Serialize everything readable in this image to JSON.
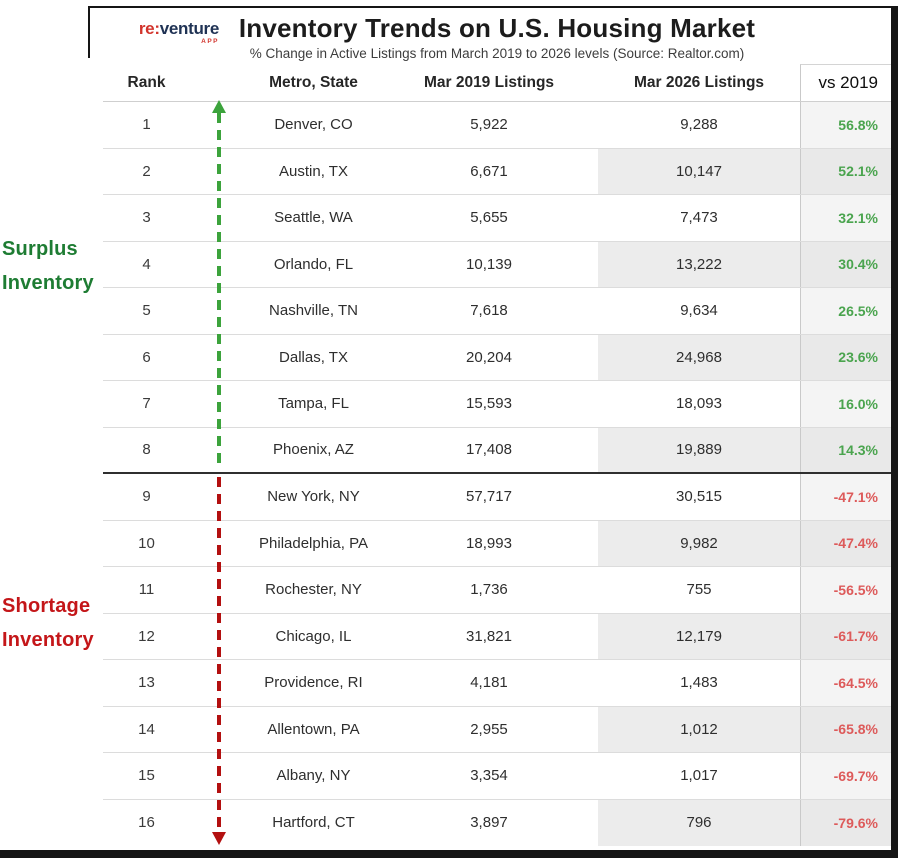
{
  "logo": {
    "prefix": "re:",
    "name": "venture",
    "suffix": "APP"
  },
  "header": {
    "title": "Inventory Trends on U.S. Housing Market",
    "subtitle": "% Change in Active Listings from March 2019 to 2026 levels (Source: Realtor.com)"
  },
  "table": {
    "columns": [
      "Rank",
      "Metro, State",
      "Mar 2019 Listings",
      "Mar 2026 Listings",
      "vs 2019"
    ],
    "rows": [
      {
        "rank": "1",
        "metro": "Denver, CO",
        "mar2019": "5,922",
        "mar2026": "9,288",
        "vs2019": "56.8%"
      },
      {
        "rank": "2",
        "metro": "Austin, TX",
        "mar2019": "6,671",
        "mar2026": "10,147",
        "vs2019": "52.1%"
      },
      {
        "rank": "3",
        "metro": "Seattle, WA",
        "mar2019": "5,655",
        "mar2026": "7,473",
        "vs2019": "32.1%"
      },
      {
        "rank": "4",
        "metro": "Orlando, FL",
        "mar2019": "10,139",
        "mar2026": "13,222",
        "vs2019": "30.4%"
      },
      {
        "rank": "5",
        "metro": "Nashville, TN",
        "mar2019": "7,618",
        "mar2026": "9,634",
        "vs2019": "26.5%"
      },
      {
        "rank": "6",
        "metro": "Dallas, TX",
        "mar2019": "20,204",
        "mar2026": "24,968",
        "vs2019": "23.6%"
      },
      {
        "rank": "7",
        "metro": "Tampa, FL",
        "mar2019": "15,593",
        "mar2026": "18,093",
        "vs2019": "16.0%"
      },
      {
        "rank": "8",
        "metro": "Phoenix, AZ",
        "mar2019": "17,408",
        "mar2026": "19,889",
        "vs2019": "14.3%"
      },
      {
        "rank": "9",
        "metro": "New York, NY",
        "mar2019": "57,717",
        "mar2026": "30,515",
        "vs2019": "-47.1%"
      },
      {
        "rank": "10",
        "metro": "Philadelphia, PA",
        "mar2019": "18,993",
        "mar2026": "9,982",
        "vs2019": "-47.4%"
      },
      {
        "rank": "11",
        "metro": "Rochester, NY",
        "mar2019": "1,736",
        "mar2026": "755",
        "vs2019": "-56.5%"
      },
      {
        "rank": "12",
        "metro": "Chicago, IL",
        "mar2019": "31,821",
        "mar2026": "12,179",
        "vs2019": "-61.7%"
      },
      {
        "rank": "13",
        "metro": "Providence, RI",
        "mar2019": "4,181",
        "mar2026": "1,483",
        "vs2019": "-64.5%"
      },
      {
        "rank": "14",
        "metro": "Allentown, PA",
        "mar2019": "2,955",
        "mar2026": "1,012",
        "vs2019": "-65.8%"
      },
      {
        "rank": "15",
        "metro": "Albany, NY",
        "mar2019": "3,354",
        "mar2026": "1,017",
        "vs2019": "-69.7%"
      },
      {
        "rank": "16",
        "metro": "Hartford, CT",
        "mar2019": "3,897",
        "mar2026": "796",
        "vs2019": "-79.6%"
      }
    ]
  },
  "annotations": {
    "surplus_label": "Surplus\nInventory",
    "shortage_label": "Shortage\nInventory"
  },
  "colors": {
    "pos-green": "#4aa44e",
    "neg-red": "#dd5a5a",
    "surplus-green": "#1e7c33",
    "shortage-red": "#c41619",
    "arrow-green": "#3ca33c",
    "arrow-red": "#b31010",
    "logo-red": "#d2342c",
    "logo-navy": "#1f3254"
  },
  "chart_data": {
    "type": "table",
    "title": "Inventory Trends on U.S. Housing Market",
    "subtitle": "% Change in Active Listings from March 2019 to 2026 levels (Source: Realtor.com)",
    "columns": [
      "Rank",
      "Metro, State",
      "Mar 2019 Listings",
      "Mar 2026 Listings",
      "vs 2019 (%)"
    ],
    "rows": [
      [
        1,
        "Denver, CO",
        5922,
        9288,
        56.8
      ],
      [
        2,
        "Austin, TX",
        6671,
        10147,
        52.1
      ],
      [
        3,
        "Seattle, WA",
        5655,
        7473,
        32.1
      ],
      [
        4,
        "Orlando, FL",
        10139,
        13222,
        30.4
      ],
      [
        5,
        "Nashville, TN",
        7618,
        9634,
        26.5
      ],
      [
        6,
        "Dallas, TX",
        20204,
        24968,
        23.6
      ],
      [
        7,
        "Tampa, FL",
        15593,
        18093,
        16.0
      ],
      [
        8,
        "Phoenix, AZ",
        17408,
        19889,
        14.3
      ],
      [
        9,
        "New York, NY",
        57717,
        30515,
        -47.1
      ],
      [
        10,
        "Philadelphia, PA",
        18993,
        9982,
        -47.4
      ],
      [
        11,
        "Rochester, NY",
        1736,
        755,
        -56.5
      ],
      [
        12,
        "Chicago, IL",
        31821,
        12179,
        -61.7
      ],
      [
        13,
        "Providence, RI",
        4181,
        1483,
        -64.5
      ],
      [
        14,
        "Allentown, PA",
        2955,
        1012,
        -65.8
      ],
      [
        15,
        "Albany, NY",
        3354,
        1017,
        -69.7
      ],
      [
        16,
        "Hartford, CT",
        3897,
        796,
        -79.6
      ]
    ],
    "row_groups": [
      {
        "label": "Surplus Inventory",
        "ranks": [
          1,
          8
        ],
        "direction": "up",
        "color": "#1e7c33"
      },
      {
        "label": "Shortage Inventory",
        "ranks": [
          9,
          16
        ],
        "direction": "down",
        "color": "#c41619"
      }
    ]
  }
}
